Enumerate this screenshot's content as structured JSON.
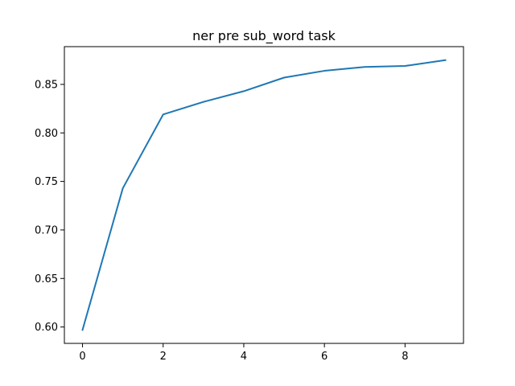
{
  "chart_data": {
    "type": "line",
    "title": "ner pre sub_word task",
    "xlabel": "",
    "ylabel": "",
    "x": [
      0,
      1,
      2,
      3,
      4,
      5,
      6,
      7,
      8,
      9
    ],
    "series": [
      {
        "values": [
          0.597,
          0.743,
          0.819,
          0.832,
          0.843,
          0.857,
          0.864,
          0.868,
          0.869,
          0.875
        ],
        "color": "#1f77b4"
      }
    ],
    "xlim": [
      -0.45,
      9.45
    ],
    "ylim": [
      0.5831,
      0.8889
    ],
    "xticks": [
      0,
      2,
      4,
      6,
      8
    ],
    "xtick_labels": [
      "0",
      "2",
      "4",
      "6",
      "8"
    ],
    "yticks": [
      0.6,
      0.65,
      0.7,
      0.75,
      0.8,
      0.85
    ],
    "ytick_labels": [
      "0.60",
      "0.65",
      "0.70",
      "0.75",
      "0.80",
      "0.85"
    ],
    "grid": false,
    "legend": "none"
  }
}
